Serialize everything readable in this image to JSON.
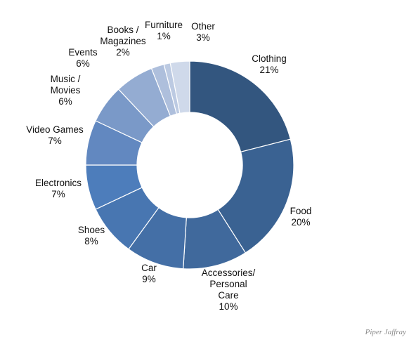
{
  "chart_data": {
    "type": "pie",
    "subtype": "donut",
    "slices": [
      {
        "label": [
          "Clothing"
        ],
        "value_label": "21%",
        "value": 21,
        "color": "#33567f"
      },
      {
        "label": [
          "Food"
        ],
        "value_label": "20%",
        "value": 20,
        "color": "#3a6292"
      },
      {
        "label": [
          "Accessories/",
          "Personal",
          "Care"
        ],
        "value_label": "10%",
        "value": 10,
        "color": "#40699c"
      },
      {
        "label": [
          "Car"
        ],
        "value_label": "9%",
        "value": 9,
        "color": "#446fa6"
      },
      {
        "label": [
          "Shoes"
        ],
        "value_label": "8%",
        "value": 8,
        "color": "#4876b1"
      },
      {
        "label": [
          "Electronics"
        ],
        "value_label": "7%",
        "value": 7,
        "color": "#4d7dbb"
      },
      {
        "label": [
          "Video Games"
        ],
        "value_label": "7%",
        "value": 7,
        "color": "#6288c0"
      },
      {
        "label": [
          "Music /",
          "Movies"
        ],
        "value_label": "6%",
        "value": 6,
        "color": "#7a99c8"
      },
      {
        "label": [
          "Events"
        ],
        "value_label": "6%",
        "value": 6,
        "color": "#94acd2"
      },
      {
        "label": [
          "Books /",
          "Magazines"
        ],
        "value_label": "2%",
        "value": 2,
        "color": "#aebfdc"
      },
      {
        "label": [
          "Furniture"
        ],
        "value_label": "1%",
        "value": 1,
        "color": "#bccae2"
      },
      {
        "label": [
          "Other"
        ],
        "value_label": "3%",
        "value": 3,
        "color": "#cfd9ea"
      }
    ]
  },
  "source": "Piper Jaffray"
}
